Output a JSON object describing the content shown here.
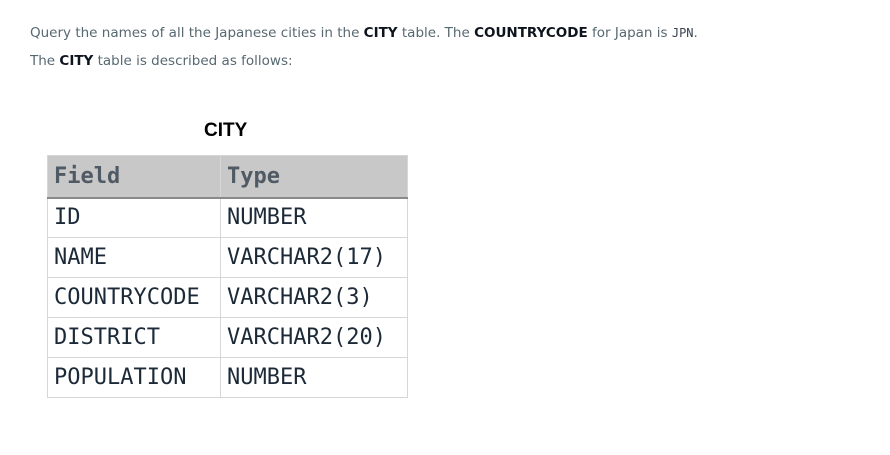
{
  "statement": {
    "p1": {
      "t1": "Query the names of all the Japanese cities in the ",
      "b1": "CITY",
      "t2": " table. The ",
      "b2": "COUNTRYCODE",
      "t3": " for Japan is ",
      "code": "JPN",
      "t4": "."
    },
    "p2": {
      "t1": "The ",
      "b1": "CITY",
      "t2": " table is described as follows:"
    }
  },
  "schema_table": {
    "caption": "CITY",
    "headers": [
      "Field",
      "Type"
    ],
    "rows": [
      [
        "ID",
        "NUMBER"
      ],
      [
        "NAME",
        "VARCHAR2(17)"
      ],
      [
        "COUNTRYCODE",
        "VARCHAR2(3)"
      ],
      [
        "DISTRICT",
        "VARCHAR2(20)"
      ],
      [
        "POPULATION",
        "NUMBER"
      ]
    ]
  }
}
